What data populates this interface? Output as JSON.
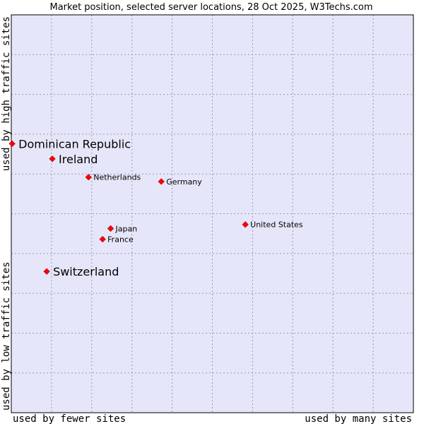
{
  "chart_data": {
    "type": "scatter",
    "title": "Market position, selected server locations, 28 Oct 2025, W3Techs.com",
    "xlabel_left": "used by fewer sites",
    "xlabel_right": "used by many sites",
    "ylabel_bottom": "used by low traffic sites",
    "ylabel_top": "used by high traffic sites",
    "xlim": [
      0,
      10
    ],
    "ylim": [
      0,
      10
    ],
    "grid": true,
    "points": [
      {
        "name": "Dominican Republic",
        "x": 0.02,
        "y": 6.76,
        "highlight": true
      },
      {
        "name": "Ireland",
        "x": 1.02,
        "y": 6.38,
        "highlight": true
      },
      {
        "name": "Netherlands",
        "x": 1.92,
        "y": 5.92,
        "highlight": false
      },
      {
        "name": "Germany",
        "x": 3.73,
        "y": 5.81,
        "highlight": false
      },
      {
        "name": "United States",
        "x": 5.82,
        "y": 4.73,
        "highlight": false
      },
      {
        "name": "Japan",
        "x": 2.47,
        "y": 4.63,
        "highlight": false
      },
      {
        "name": "France",
        "x": 2.27,
        "y": 4.36,
        "highlight": false
      },
      {
        "name": "Switzerland",
        "x": 0.88,
        "y": 3.55,
        "highlight": true
      }
    ]
  },
  "colors": {
    "plot_background": "#e6e6fa",
    "grid": "#9a9aac",
    "marker": "#ff0000",
    "axis": "#000000"
  }
}
